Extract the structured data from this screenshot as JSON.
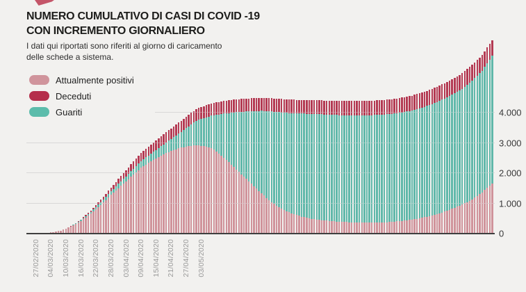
{
  "header": {
    "title_line1": "NUMERO CUMULATIVO DI CASI DI COVID -19",
    "title_line2": "CON INCREMENTO GIORNALIERO",
    "subtitle_line1": "I dati qui riportati sono riferiti al giorno di caricamento",
    "subtitle_line2": "delle schede a sistema."
  },
  "legend": [
    {
      "label": "Attualmente positivi",
      "color": "#d0949c"
    },
    {
      "label": "Deceduti",
      "color": "#b52e4b"
    },
    {
      "label": "Guariti",
      "color": "#5cbcab"
    }
  ],
  "colors": {
    "background": "#f2f1ef",
    "bar_positivi": "#d0939b",
    "bar_guariti": "#60b8aa",
    "bar_deceduti": "#b43a53",
    "gridline": "#c7c7c6",
    "axis_line": "#3f3f3f",
    "logo": "#c45568"
  },
  "chart_data": {
    "type": "bar",
    "stacked": true,
    "bar_unit": "1 day",
    "start_date": "27/02/2020",
    "x_tick_interval_days": 6,
    "x_tick_labels": [
      "27/02/2020",
      "04/03/2020",
      "10/03/2020",
      "16/03/2020",
      "22/03/2020",
      "28/03/2020",
      "03/04/2020",
      "09/04/2020",
      "15/04/2020",
      "21/04/2020",
      "27/04/2020",
      "03/05/2020"
    ],
    "y_tick_labels": [
      "0",
      "1.000",
      "2.000",
      "3.000",
      "4.000"
    ],
    "ylim": [
      0,
      6500
    ],
    "grid": "horizontal",
    "legend_position": "top-left",
    "stack_order_bottom_to_top": [
      "Attualmente positivi",
      "Guariti",
      "Deceduti"
    ],
    "series": [
      {
        "name": "Attualmente positivi",
        "color": "#d0939b",
        "values": [
          5,
          10,
          15,
          20,
          25,
          30,
          35,
          51,
          68,
          84,
          100,
          132,
          165,
          198,
          230,
          278,
          325,
          372,
          420,
          480,
          540,
          600,
          660,
          732,
          805,
          878,
          950,
          1032,
          1115,
          1198,
          1280,
          1355,
          1430,
          1505,
          1580,
          1655,
          1730,
          1805,
          1880,
          1955,
          2030,
          2105,
          2180,
          2235,
          2290,
          2345,
          2400,
          2448,
          2495,
          2543,
          2590,
          2628,
          2665,
          2703,
          2740,
          2768,
          2795,
          2823,
          2850,
          2867,
          2883,
          2900,
          2908,
          2917,
          2925,
          2918,
          2912,
          2905,
          2883,
          2862,
          2840,
          2778,
          2715,
          2653,
          2590,
          2515,
          2440,
          2365,
          2290,
          2210,
          2130,
          2050,
          1970,
          1890,
          1810,
          1730,
          1650,
          1570,
          1490,
          1410,
          1330,
          1258,
          1185,
          1113,
          1040,
          985,
          930,
          875,
          820,
          783,
          745,
          708,
          670,
          643,
          615,
          588,
          560,
          543,
          525,
          508,
          490,
          479,
          468,
          456,
          445,
          436,
          428,
          419,
          410,
          405,
          400,
          395,
          390,
          386,
          381,
          377,
          372,
          370,
          367,
          365,
          362,
          362,
          361,
          361,
          360,
          362,
          364,
          366,
          368,
          374,
          379,
          385,
          390,
          398,
          406,
          414,
          422,
          433,
          444,
          454,
          465,
          480,
          495,
          510,
          525,
          544,
          563,
          581,
          600,
          625,
          650,
          675,
          700,
          730,
          760,
          790,
          820,
          855,
          890,
          925,
          960,
          1003,
          1045,
          1088,
          1130,
          1190,
          1250,
          1310,
          1370,
          1443,
          1515,
          1588,
          1660
        ]
      },
      {
        "name": "Guariti",
        "color": "#60b8aa",
        "values": [
          0,
          0,
          0,
          0,
          0,
          0,
          0,
          0,
          0,
          0,
          0,
          0,
          0,
          0,
          6,
          12,
          18,
          25,
          30,
          38,
          45,
          53,
          60,
          68,
          75,
          82,
          90,
          98,
          105,
          112,
          120,
          128,
          135,
          143,
          150,
          160,
          170,
          180,
          190,
          198,
          205,
          213,
          220,
          228,
          235,
          243,
          250,
          265,
          280,
          295,
          310,
          332,
          355,
          377,
          400,
          430,
          460,
          490,
          520,
          566,
          614,
          660,
          712,
          763,
          815,
          852,
          888,
          925,
          974,
          1021,
          1070,
          1146,
          1223,
          1299,
          1376,
          1465,
          1549,
          1633,
          1717,
          1806,
          1895,
          1980,
          2065,
          2150,
          2235,
          2320,
          2404,
          2488,
          2572,
          2656,
          2740,
          2806,
          2873,
          2939,
          3006,
          3055,
          3102,
          3149,
          3196,
          3225,
          3255,
          3288,
          3322,
          3345,
          3369,
          3392,
          3418,
          3433,
          3449,
          3464,
          3480,
          3487,
          3494,
          3502,
          3509,
          3514,
          3518,
          3523,
          3528,
          3529,
          3530,
          3533,
          3536,
          3538,
          3541,
          3543,
          3548,
          3550,
          3553,
          3555,
          3558,
          3560,
          3563,
          3565,
          3568,
          3568,
          3570,
          3572,
          3574,
          3574,
          3575,
          3575,
          3580,
          3582,
          3584,
          3586,
          3594,
          3599,
          3604,
          3610,
          3615,
          3624,
          3633,
          3642,
          3651,
          3656,
          3669,
          3683,
          3696,
          3703,
          3710,
          3725,
          3740,
          3750,
          3760,
          3770,
          3788,
          3801,
          3814,
          3827,
          3840,
          3867,
          3895,
          3922,
          3950,
          3970,
          3990,
          4010,
          4030,
          4080,
          4130,
          4180,
          4230
        ]
      },
      {
        "name": "Deceduti",
        "color": "#b43a53",
        "values": [
          0,
          0,
          0,
          0,
          0,
          0,
          0,
          0,
          1,
          1,
          2,
          4,
          5,
          6,
          8,
          11,
          14,
          17,
          20,
          26,
          33,
          39,
          45,
          54,
          63,
          71,
          80,
          91,
          103,
          114,
          125,
          138,
          150,
          163,
          175,
          188,
          200,
          213,
          225,
          236,
          248,
          259,
          270,
          279,
          288,
          296,
          305,
          311,
          318,
          324,
          330,
          335,
          340,
          345,
          350,
          355,
          359,
          364,
          368,
          372,
          375,
          379,
          382,
          385,
          388,
          391,
          394,
          397,
          399,
          402,
          404,
          406,
          408,
          410,
          412,
          414,
          416,
          417,
          419,
          421,
          422,
          424,
          425,
          426,
          428,
          429,
          430,
          431,
          432,
          434,
          435,
          436,
          438,
          439,
          440,
          442,
          443,
          444,
          445,
          447,
          448,
          449,
          450,
          451,
          452,
          453,
          454,
          455,
          456,
          457,
          458,
          459,
          460,
          461,
          462,
          463,
          463,
          464,
          465,
          466,
          467,
          468,
          469,
          470,
          471,
          472,
          472,
          473,
          474,
          475,
          476,
          477,
          478,
          479,
          480,
          481,
          481,
          482,
          483,
          484,
          485,
          486,
          487,
          488,
          489,
          490,
          490,
          491,
          492,
          493,
          494,
          495,
          496,
          497,
          498,
          499,
          499,
          500,
          501,
          502,
          503,
          504,
          505,
          506,
          507,
          508,
          508,
          509,
          510,
          511,
          512,
          513,
          514,
          515,
          515,
          516,
          517,
          518,
          519,
          520,
          520,
          521,
          522
        ]
      }
    ]
  }
}
